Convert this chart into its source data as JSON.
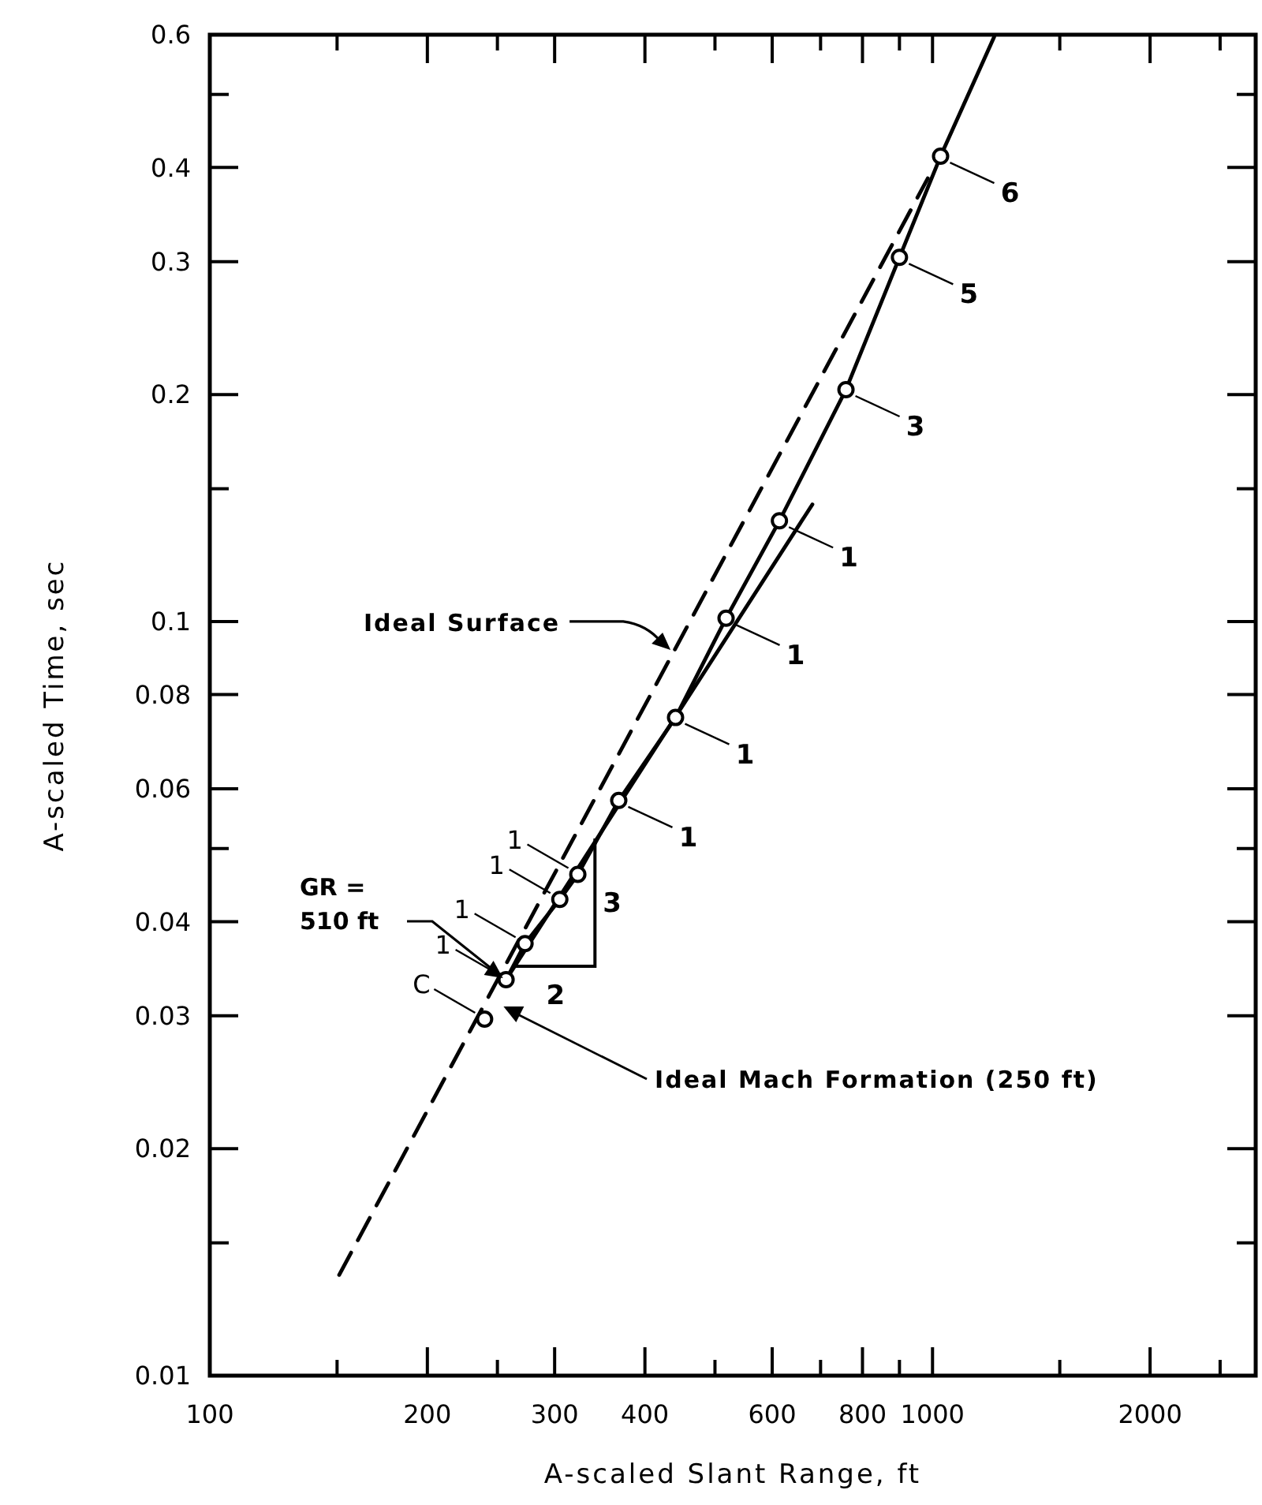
{
  "chart_data": {
    "type": "scatter",
    "xlabel": "A-scaled Slant Range, ft",
    "ylabel": "A-scaled Time, sec",
    "log": "xy",
    "grid": false,
    "xlim": [
      100,
      2800
    ],
    "ylim": [
      0.01,
      0.6
    ],
    "xticks": [
      100,
      {
        "value": 150,
        "label": null
      },
      200,
      {
        "value": 250,
        "label": null
      },
      300,
      400,
      {
        "value": 500,
        "label": null
      },
      600,
      {
        "value": 700,
        "label": null
      },
      800,
      {
        "value": 900,
        "label": null
      },
      1000,
      {
        "value": 1500,
        "label": null
      },
      2000,
      {
        "value": 2500,
        "label": null
      }
    ],
    "yticks": [
      0.01,
      {
        "value": 0.015,
        "label": null
      },
      0.02,
      0.03,
      0.04,
      {
        "value": 0.05,
        "label": null
      },
      0.06,
      0.08,
      0.1,
      {
        "value": 0.15,
        "label": null
      },
      0.2,
      0.3,
      0.4,
      {
        "value": 0.5,
        "label": null
      },
      0.6
    ],
    "series": [
      {
        "color": "#000000",
        "marker": "circle",
        "x": [
          240,
          257,
          273,
          305,
          323,
          368,
          441,
          518,
          614,
          759,
          900,
          1026
        ],
        "values": [
          0.0297,
          0.0335,
          0.0374,
          0.0428,
          0.0462,
          0.0579,
          0.0746,
          0.101,
          0.136,
          0.203,
          0.304,
          0.414
        ]
      },
      {
        "type": "line",
        "color": "#000000",
        "marker": "none",
        "line_style": "solid",
        "x": [
          257,
          273,
          305,
          323,
          368,
          441,
          518,
          614,
          759,
          900,
          1026,
          1217
        ],
        "values": [
          0.0335,
          0.0374,
          0.0428,
          0.0462,
          0.0579,
          0.0746,
          0.101,
          0.136,
          0.203,
          0.304,
          0.414,
          0.596
        ]
      },
      {
        "type": "line",
        "color": "#000000",
        "marker": "none",
        "line_style": "solid",
        "x": [
          257,
          682
        ],
        "values": [
          0.0335,
          0.143
        ]
      },
      {
        "type": "line",
        "color": "#000000",
        "marker": "none",
        "line_style": "dashed",
        "x": [
          151,
          985
        ],
        "values": [
          0.0136,
          0.387
        ]
      }
    ],
    "annotations": [
      {
        "text": "C",
        "x": 240,
        "y": 0.0297
      },
      {
        "text": "1",
        "x": 257,
        "y": 0.0335
      },
      {
        "text": "1",
        "x": 273,
        "y": 0.0374
      },
      {
        "text": "1",
        "x": 305,
        "y": 0.0428
      },
      {
        "text": "1",
        "x": 323,
        "y": 0.0462
      },
      {
        "text": "1",
        "x": 368,
        "y": 0.0579
      },
      {
        "text": "1",
        "x": 441,
        "y": 0.0746
      },
      {
        "text": "1",
        "x": 518,
        "y": 0.101
      },
      {
        "text": "1",
        "x": 614,
        "y": 0.136
      },
      {
        "text": "3",
        "x": 759,
        "y": 0.203
      },
      {
        "text": "5",
        "x": 900,
        "y": 0.304
      },
      {
        "text": "6",
        "x": 1026,
        "y": 0.414
      },
      {
        "text": "Ideal Surface",
        "x": 434,
        "y": 0.0917
      },
      "GR = 510 ft",
      "Ideal Mach Formation (250 ft)",
      {
        "text": "2",
        "x": 264,
        "y": 0.0349
      },
      "3"
    ]
  }
}
